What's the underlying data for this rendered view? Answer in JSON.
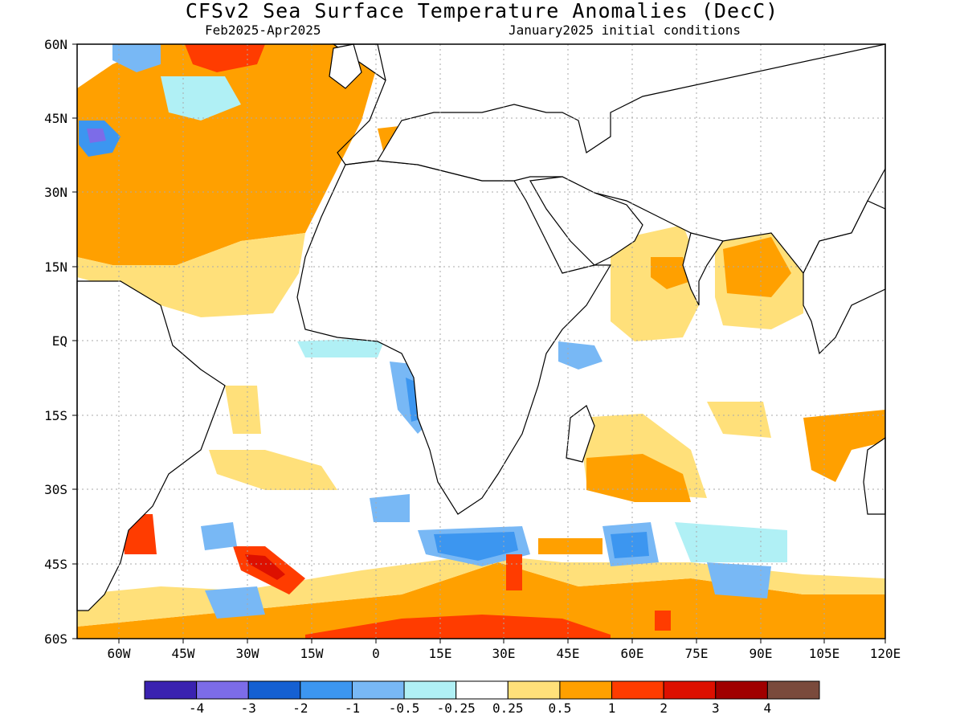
{
  "title": "CFSv2 Sea Surface Temperature Anomalies (DecC)",
  "period": "Feb2025-Apr2025",
  "initial_conditions": "January2025 initial conditions",
  "lat_labels": [
    "60N",
    "45N",
    "30N",
    "15N",
    "EQ",
    "15S",
    "30S",
    "45S",
    "60S"
  ],
  "lon_labels": [
    "60W",
    "45W",
    "30W",
    "15W",
    "0",
    "15E",
    "30E",
    "45E",
    "60E",
    "75E",
    "90E",
    "105E",
    "120E"
  ],
  "colorbar": {
    "colors": [
      "#3a22b0",
      "#7c6ce8",
      "#1560d2",
      "#3c96f0",
      "#78b8f5",
      "#b0f0f5",
      "#ffffff",
      "#ffe07a",
      "#ffa000",
      "#ff3c00",
      "#dd1000",
      "#a00000",
      "#7a4a3c"
    ],
    "labels": [
      "-4",
      "-3",
      "-2",
      "-1",
      "-0.5",
      "-0.25",
      "0.25",
      "0.5",
      "1",
      "2",
      "3",
      "4"
    ]
  },
  "colors": {
    "land_outline": "#000000",
    "grid": "#aaaaaa",
    "frame": "#000000"
  }
}
